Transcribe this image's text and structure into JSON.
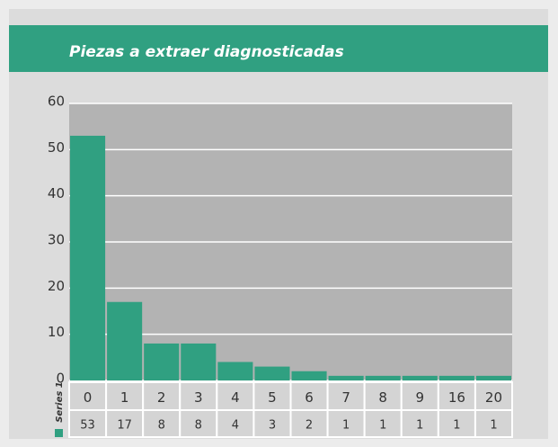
{
  "chart_data": {
    "type": "bar",
    "title": "Piezas a extraer diagnosticadas",
    "categories": [
      "0",
      "1",
      "2",
      "3",
      "4",
      "5",
      "6",
      "7",
      "8",
      "9",
      "16",
      "20"
    ],
    "series": [
      {
        "name": "Series 1",
        "color": "#30a081",
        "values": [
          53,
          17,
          8,
          8,
          4,
          3,
          2,
          1,
          1,
          1,
          1,
          1
        ]
      }
    ],
    "ylim": [
      0,
      60
    ],
    "yticks": [
      0,
      10,
      20,
      30,
      40,
      50,
      60
    ],
    "grid": true
  }
}
